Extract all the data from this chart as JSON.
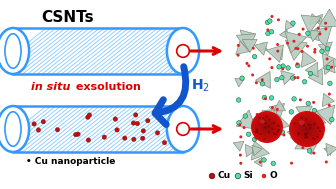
{
  "bg_color": "#ffffff",
  "tube_color_edge": "#3399ff",
  "tube_color_hatch": "#66bbff",
  "tube_fill": "#ffffff",
  "tube_inner_fill": "#ffffff",
  "arrow_blue": "#1155cc",
  "arrow_red": "#dd0000",
  "cu_color": "#bb1111",
  "si_color": "#55ddaa",
  "o_color": "#dd2222",
  "title": "CSNTs",
  "text_insitu": "in situ",
  "text_exsolution": " exsolution",
  "text_h2": "H$_2$",
  "text_cu_nano": "• Cu nanoparticle",
  "legend_cu": "Cu",
  "legend_si": "Si",
  "legend_o": "O"
}
